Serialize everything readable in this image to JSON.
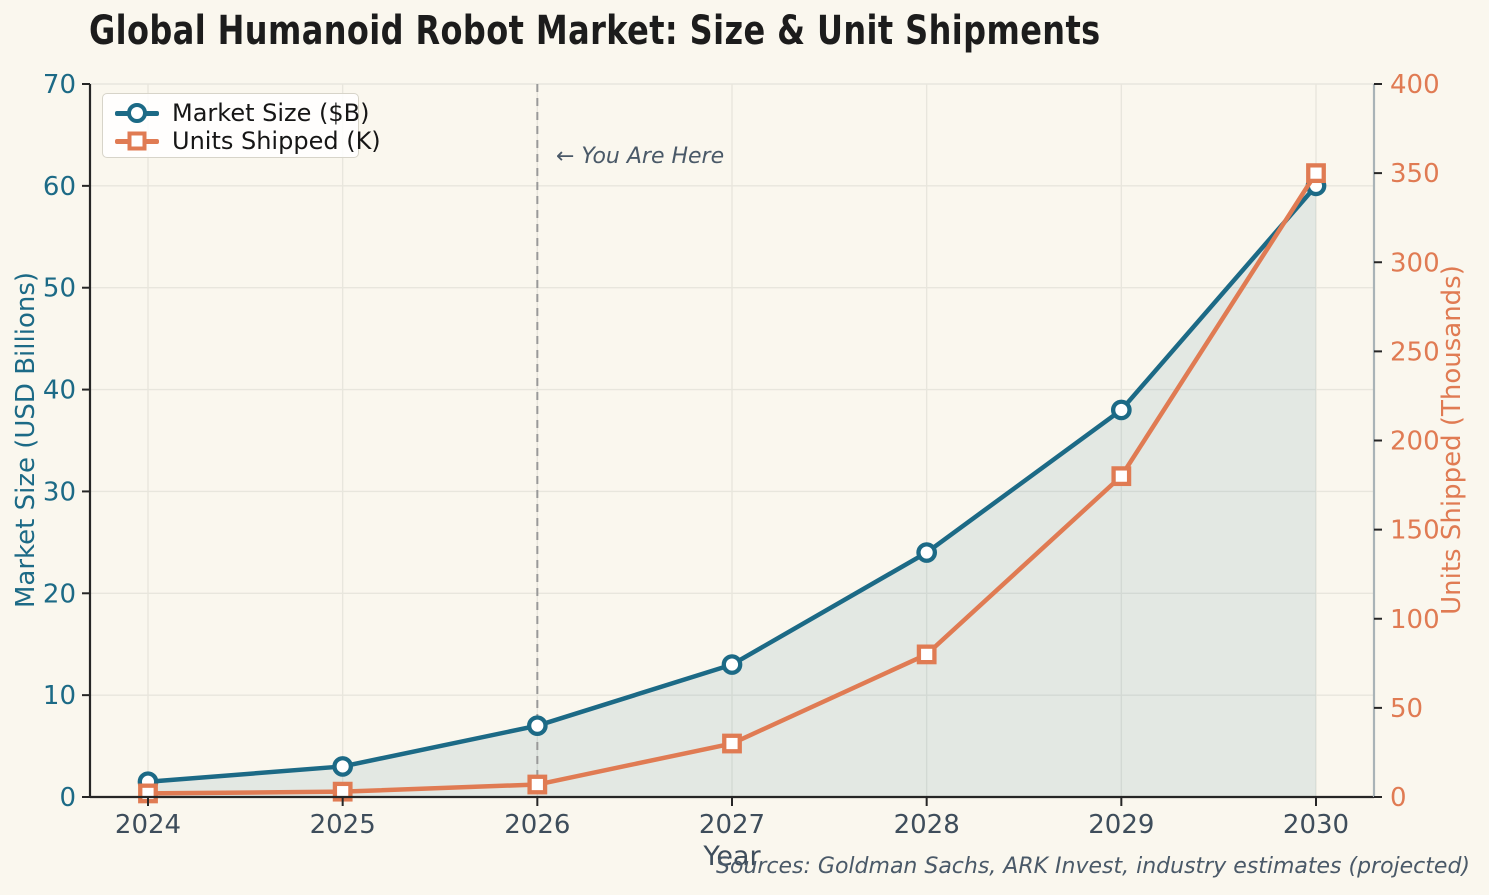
{
  "title": "Global Humanoid Robot Market: Size & Unit Shipments",
  "annotation": {
    "text": "← You Are Here",
    "year": 2026
  },
  "footer": "Sources: Goldman Sachs, ARK Invest, industry estimates (projected)",
  "colors": {
    "teal": "#1c6a86",
    "orange": "#e07b53",
    "background": "#faf7ee",
    "grid": "#e8e6dd",
    "spine_dark": "#262626",
    "spine_right": "#a9b3b7",
    "dashed_line": "#999999",
    "tick_text": "#3e4d5b",
    "muted_text": "#4a5968",
    "title_text": "#1c1c1c",
    "area_fill": "rgba(28,106,134,0.10)"
  },
  "chart_data": {
    "type": "line",
    "title": "Global Humanoid Robot Market: Size & Unit Shipments",
    "xlabel": "Year",
    "x": [
      2024,
      2025,
      2026,
      2027,
      2028,
      2029,
      2030
    ],
    "series": [
      {
        "name": "Market Size ($B)",
        "axis": "left",
        "color": "#1c6a86",
        "marker": "circle",
        "area": true,
        "values": [
          1.5,
          3,
          7,
          13,
          24,
          38,
          60
        ]
      },
      {
        "name": "Units Shipped (K)",
        "axis": "right",
        "color": "#e07b53",
        "marker": "square",
        "area": false,
        "values": [
          2,
          3,
          7,
          30,
          80,
          180,
          350
        ]
      }
    ],
    "left_axis": {
      "label": "Market Size (USD Billions)",
      "min": 0,
      "max": 70,
      "ticks": [
        0,
        10,
        20,
        30,
        40,
        50,
        60,
        70
      ]
    },
    "right_axis": {
      "label": "Units Shipped (Thousands)",
      "min": 0,
      "max": 400,
      "ticks": [
        0,
        50,
        100,
        150,
        200,
        250,
        300,
        350,
        400
      ]
    },
    "grid": true,
    "legend_position": "upper-left",
    "vline_year": 2026
  }
}
